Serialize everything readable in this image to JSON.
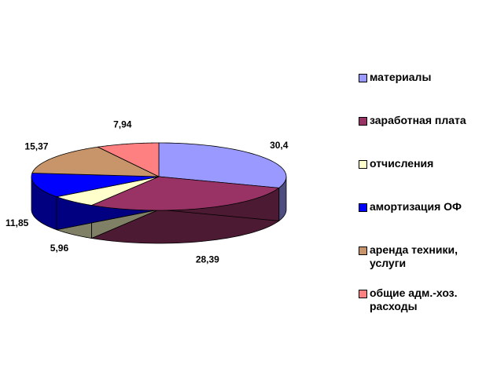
{
  "chart_data": {
    "type": "pie",
    "series": [
      {
        "name": "материалы",
        "color": "#9999ff",
        "values": [
          30.4
        ],
        "value_labels": [
          "30,4"
        ]
      },
      {
        "name": "заработная плата",
        "color": "#993366",
        "values": [
          28.39
        ],
        "value_labels": [
          "28,39"
        ]
      },
      {
        "name": "отчисления",
        "color": "#ffffcc",
        "values": [
          5.96
        ],
        "value_labels": [
          "5,96"
        ]
      },
      {
        "name": "амортизация ОФ",
        "color": "#0000ff",
        "values": [
          11.85
        ],
        "value_labels": [
          "11,85"
        ]
      },
      {
        "name": "аренда техники,\nуслуги",
        "color": "#c8956a",
        "values": [
          15.37
        ],
        "value_labels": [
          "15,37"
        ]
      },
      {
        "name": "общие адм.-хоз.\nрасходы",
        "color": "#ff8080",
        "values": [
          7.94
        ],
        "value_labels": [
          "7,94"
        ]
      }
    ],
    "legend": "right"
  }
}
